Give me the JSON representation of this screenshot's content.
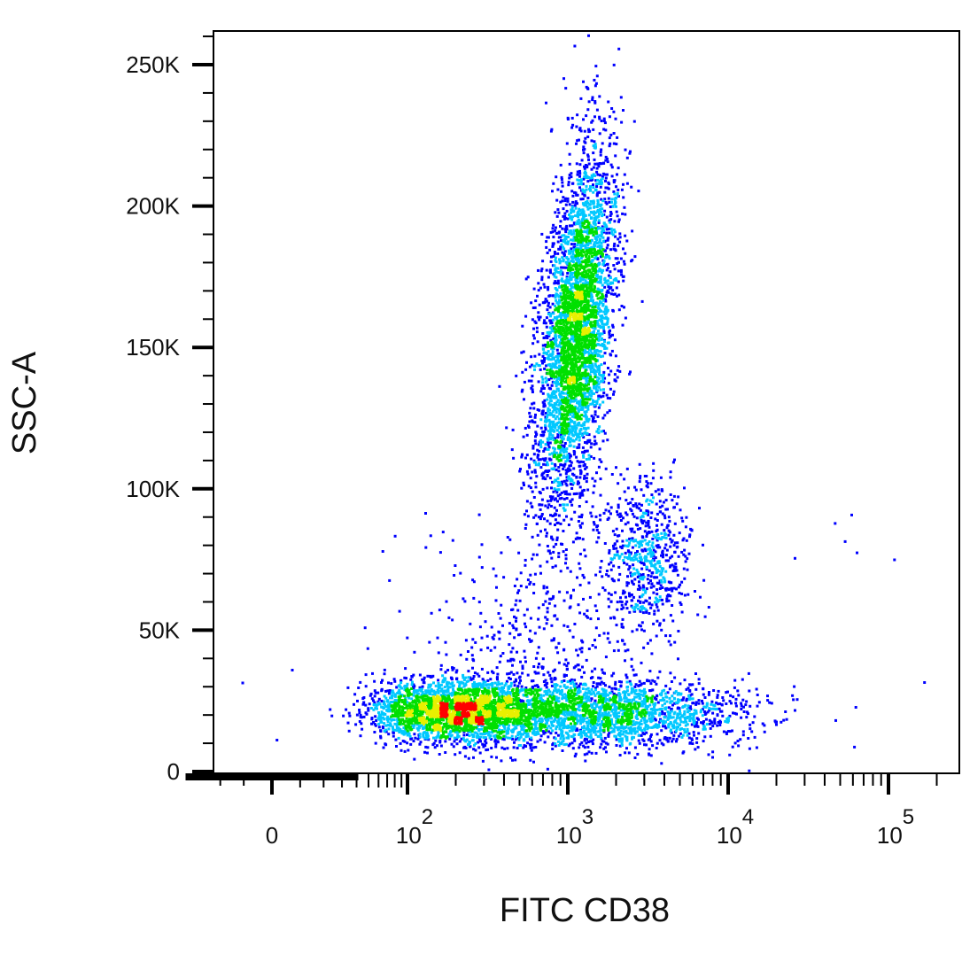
{
  "chart_data": {
    "type": "scatter",
    "style": "density-colored dot plot",
    "xlabel": "FITC CD38",
    "ylabel": "SSC-A",
    "x_scale": "biexponential",
    "y_scale": "linear",
    "xlim": [
      -40,
      250000
    ],
    "ylim": [
      0,
      262000
    ],
    "x_ticks": [
      {
        "value": 0,
        "base": "0",
        "exp": ""
      },
      {
        "value": 100,
        "base": "10",
        "exp": "2"
      },
      {
        "value": 1000,
        "base": "10",
        "exp": "3"
      },
      {
        "value": 10000,
        "base": "10",
        "exp": "4"
      },
      {
        "value": 100000,
        "base": "10",
        "exp": "5"
      }
    ],
    "y_ticks": [
      {
        "value": 0,
        "label": "0"
      },
      {
        "value": 50000,
        "label": "50K"
      },
      {
        "value": 100000,
        "label": "100K"
      },
      {
        "value": 150000,
        "label": "150K"
      },
      {
        "value": 200000,
        "label": "200K"
      },
      {
        "value": 250000,
        "label": "250K"
      }
    ],
    "grid": false,
    "legend": "none",
    "density_colors": [
      "#0000ff",
      "#00c8ff",
      "#00e000",
      "#e8f000",
      "#ff0000"
    ],
    "populations": [
      {
        "x_center": 1100,
        "x_log_sd": 0.11,
        "y_center": 155000,
        "y_sd": 32000,
        "x_log_slope_per_100K": 0.18,
        "count": 4000
      },
      {
        "x_center": 200,
        "x_log_sd": 0.28,
        "y_center": 22000,
        "y_sd": 5500,
        "x_log_slope_per_100K": 0,
        "count": 2600
      },
      {
        "x_center": 1500,
        "x_log_sd": 0.45,
        "y_center": 21000,
        "y_sd": 6000,
        "x_log_slope_per_100K": 0,
        "count": 2200
      },
      {
        "x_center": 3000,
        "x_log_sd": 0.13,
        "y_center": 76000,
        "y_sd": 14000,
        "x_log_slope_per_100K": 0,
        "count": 650
      },
      {
        "x_center": 700,
        "x_log_sd": 0.35,
        "y_center": 50000,
        "y_sd": 18000,
        "x_log_slope_per_100K": 0,
        "count": 300
      }
    ]
  }
}
